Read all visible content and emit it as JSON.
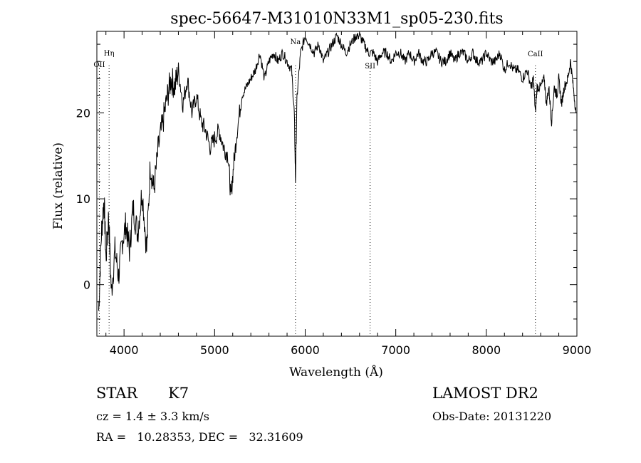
{
  "chart_data": {
    "type": "line",
    "title": "spec-56647-M31010N33M1_sp05-230.fits",
    "xlabel": "Wavelength (Å)",
    "ylabel": "Flux (relative)",
    "xlim": [
      3700,
      9000
    ],
    "ylim": [
      -6,
      29.5
    ],
    "xticks": [
      4000,
      5000,
      6000,
      7000,
      8000,
      9000
    ],
    "yticks": [
      0,
      10,
      20
    ],
    "x": [
      3720,
      3750,
      3780,
      3800,
      3830,
      3860,
      3900,
      3940,
      3980,
      4020,
      4060,
      4100,
      4150,
      4200,
      4250,
      4290,
      4330,
      4380,
      4430,
      4480,
      4520,
      4560,
      4600,
      4650,
      4700,
      4750,
      4800,
      4850,
      4900,
      4950,
      5000,
      5050,
      5100,
      5150,
      5180,
      5210,
      5250,
      5300,
      5350,
      5400,
      5450,
      5500,
      5550,
      5600,
      5650,
      5700,
      5750,
      5800,
      5850,
      5880,
      5893,
      5910,
      5950,
      6000,
      6050,
      6100,
      6150,
      6200,
      6250,
      6300,
      6350,
      6400,
      6450,
      6500,
      6563,
      6600,
      6650,
      6700,
      6750,
      6800,
      6850,
      6900,
      6950,
      7000,
      7050,
      7100,
      7150,
      7200,
      7250,
      7300,
      7350,
      7400,
      7450,
      7500,
      7550,
      7600,
      7650,
      7700,
      7750,
      7800,
      7850,
      7900,
      7950,
      8000,
      8050,
      8100,
      8150,
      8200,
      8250,
      8300,
      8350,
      8400,
      8450,
      8498,
      8520,
      8542,
      8560,
      8600,
      8640,
      8662,
      8690,
      8720,
      8750,
      8780,
      8800,
      8830,
      8860,
      8900,
      8930,
      8960,
      8990
    ],
    "y": [
      -3,
      6,
      10,
      3,
      8,
      -1,
      4,
      1,
      5,
      7,
      4,
      9,
      6,
      11,
      4,
      14,
      11,
      16,
      19,
      22,
      24,
      23,
      25,
      21,
      24,
      20,
      22,
      19,
      18,
      16,
      17,
      18,
      16,
      15,
      10,
      14,
      18,
      22,
      23,
      24,
      25,
      27,
      24,
      26,
      27,
      26,
      27,
      26,
      25,
      20,
      12,
      22,
      27,
      29,
      28,
      27,
      28,
      26,
      27,
      28,
      29,
      28,
      27,
      28,
      29,
      29,
      28,
      27,
      27,
      26,
      27,
      27,
      26,
      27,
      27,
      26,
      27,
      26,
      27,
      26,
      26,
      27,
      27,
      26,
      26,
      27,
      26,
      27,
      27,
      26,
      27,
      26,
      26,
      27,
      26,
      26,
      27,
      25,
      26,
      25,
      25,
      24,
      25,
      23,
      24,
      20,
      23,
      23,
      24,
      21,
      23,
      19,
      23,
      22,
      24,
      21,
      23,
      24,
      26,
      23,
      20
    ],
    "line_markers": [
      {
        "label": "OII",
        "x": 3727
      },
      {
        "label": "Hη",
        "x": 3835
      },
      {
        "label": "Na",
        "x": 5893
      },
      {
        "label": "SII",
        "x": 6717
      },
      {
        "label": "CaII",
        "x": 8542
      }
    ],
    "grid": false,
    "color": "#000000"
  },
  "info": {
    "class_label": "STAR",
    "subclass": "K7",
    "cz": "cz = 1.4 ± 3.3 km/s",
    "coords": "RA =   10.28353, DEC =   32.31609",
    "survey": "LAMOST DR2",
    "obs_date": "Obs-Date: 20131220"
  }
}
